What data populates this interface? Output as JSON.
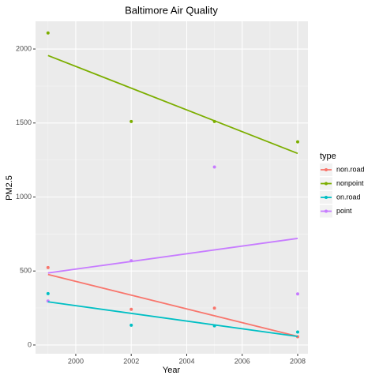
{
  "chart_data": {
    "type": "scatter",
    "title": "Baltimore Air Quality",
    "x_label": "Year",
    "y_label": "PM2.5",
    "legend_title": "type",
    "x": [
      1999,
      2002,
      2005,
      2008
    ],
    "series": [
      {
        "name": "non.road",
        "color": "#F8766D",
        "values": [
          523,
          241,
          249,
          56
        ]
      },
      {
        "name": "nonpoint",
        "color": "#7CAE00",
        "values": [
          2108,
          1510,
          1510,
          1373
        ]
      },
      {
        "name": "on.road",
        "color": "#00BFC4",
        "values": [
          347,
          134,
          130,
          88
        ]
      },
      {
        "name": "point",
        "color": "#C77CFF",
        "values": [
          297,
          569,
          1203,
          345
        ]
      }
    ],
    "xlim": [
      1998.55,
      2008.37
    ],
    "xticks": [
      2000,
      2002,
      2004,
      2006,
      2008
    ],
    "ylim": [
      -59,
      2187
    ],
    "yticks": [
      0,
      500,
      1000,
      1500,
      2000
    ],
    "grid": true,
    "trend_lines": true,
    "legend": "right"
  }
}
